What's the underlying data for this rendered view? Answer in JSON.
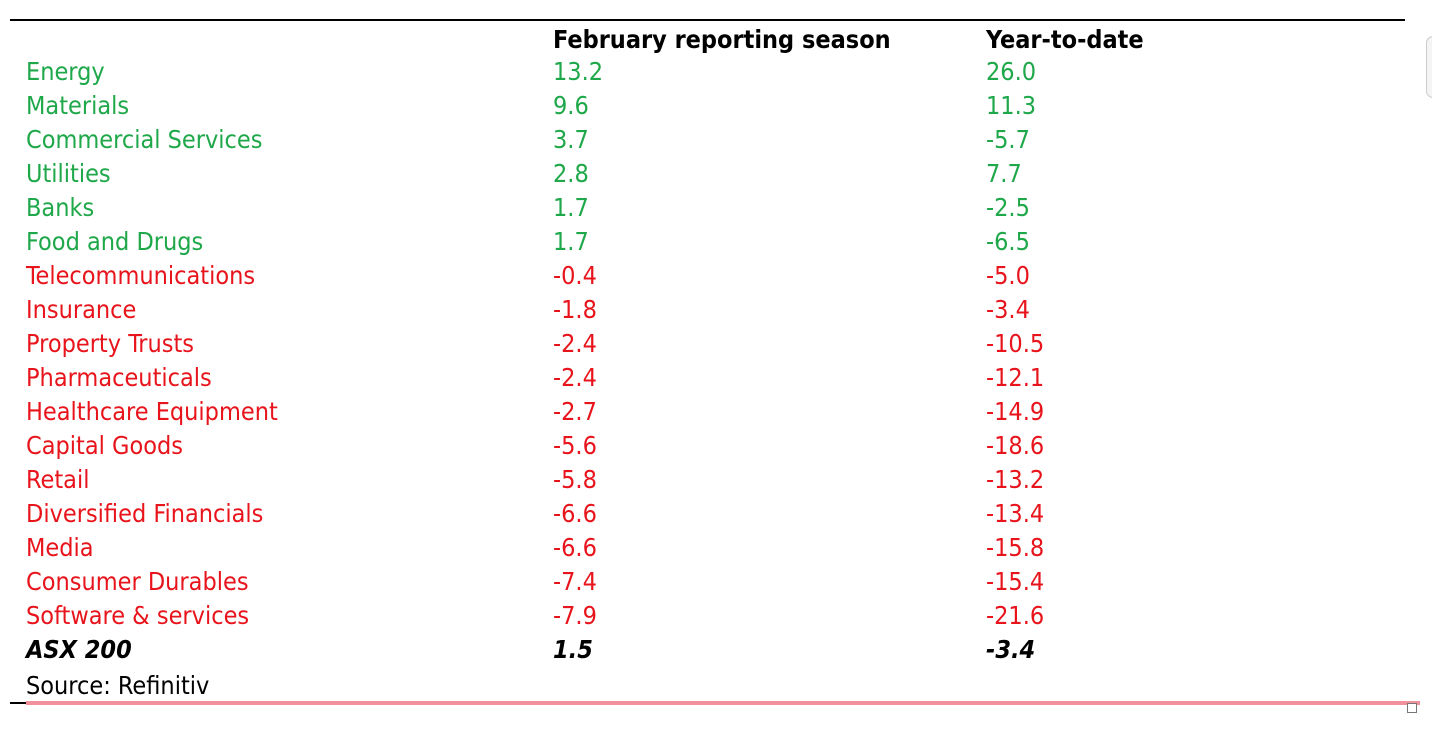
{
  "table": {
    "headers": [
      "February reporting season",
      "Year-to-date"
    ],
    "rows": [
      {
        "label": "Energy",
        "cells": [
          "13.2",
          "26.0"
        ],
        "color": "#1fa84a"
      },
      {
        "label": "Materials",
        "cells": [
          "9.6",
          "11.3"
        ],
        "color": "#1fa84a"
      },
      {
        "label": "Commercial Services",
        "cells": [
          "3.7",
          "-5.7"
        ],
        "color": "#1fa84a"
      },
      {
        "label": "Utilities",
        "cells": [
          "2.8",
          "7.7"
        ],
        "color": "#1fa84a"
      },
      {
        "label": "Banks",
        "cells": [
          "1.7",
          "-2.5"
        ],
        "color": "#1fa84a"
      },
      {
        "label": "Food and Drugs",
        "cells": [
          "1.7",
          "-6.5"
        ],
        "color": "#1fa84a"
      },
      {
        "label": "Telecommunications",
        "cells": [
          "-0.4",
          "-5.0"
        ],
        "color": "#e8141c"
      },
      {
        "label": "Insurance",
        "cells": [
          "-1.8",
          "-3.4"
        ],
        "color": "#e8141c"
      },
      {
        "label": "Property Trusts",
        "cells": [
          "-2.4",
          "-10.5"
        ],
        "color": "#e8141c"
      },
      {
        "label": "Pharmaceuticals",
        "cells": [
          "-2.4",
          "-12.1"
        ],
        "color": "#e8141c"
      },
      {
        "label": "Healthcare Equipment",
        "cells": [
          "-2.7",
          "-14.9"
        ],
        "color": "#e8141c"
      },
      {
        "label": "Capital Goods",
        "cells": [
          "-5.6",
          "-18.6"
        ],
        "color": "#e8141c"
      },
      {
        "label": "Retail",
        "cells": [
          "-5.8",
          "-13.2"
        ],
        "color": "#e8141c"
      },
      {
        "label": "Diversified Financials",
        "cells": [
          "-6.6",
          "-13.4"
        ],
        "color": "#e8141c"
      },
      {
        "label": "Media",
        "cells": [
          "-6.6",
          "-15.8"
        ],
        "color": "#e8141c"
      },
      {
        "label": "Consumer Durables",
        "cells": [
          "-7.4",
          "-15.4"
        ],
        "color": "#e8141c"
      },
      {
        "label": "Software & services",
        "cells": [
          "-7.9",
          "-21.6"
        ],
        "color": "#e8141c"
      }
    ],
    "total": {
      "label": "ASX 200",
      "cells": [
        "1.5",
        "-3.4"
      ]
    },
    "source": "Source: Refinitiv"
  }
}
